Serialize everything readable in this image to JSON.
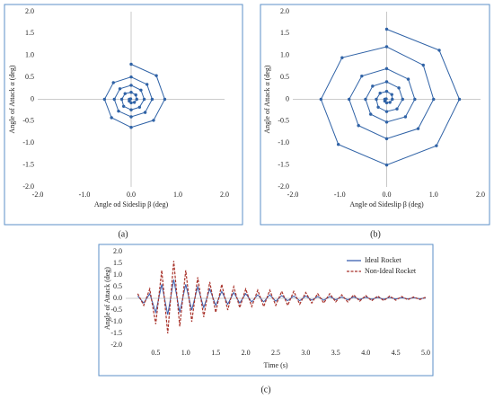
{
  "chart_data": [
    {
      "type": "line",
      "caption": "(a)",
      "x_label": "Angle od Sideslip β (deg)",
      "y_label": "Angle of Attack α (deg)",
      "xlim": [
        -2,
        2
      ],
      "ylim": [
        -2,
        2
      ],
      "xticks": [
        {
          "value": -2,
          "label": "-2.0"
        },
        {
          "value": -1,
          "label": "-1.0"
        },
        {
          "value": 0,
          "label": "0.0"
        },
        {
          "value": 1,
          "label": "1.0"
        },
        {
          "value": 2,
          "label": "2.0"
        }
      ],
      "yticks": [
        {
          "value": -2,
          "label": "-2.0"
        },
        {
          "value": -1.5,
          "label": "-1.5"
        },
        {
          "value": -1,
          "label": "-1.0"
        },
        {
          "value": -0.5,
          "label": "-0.5"
        },
        0,
        {
          "value": 0.5,
          "label": "0.5"
        },
        {
          "value": 1,
          "label": "1.0"
        },
        {
          "value": 1.5,
          "label": "1.5"
        },
        {
          "value": 2,
          "label": "2.0"
        }
      ],
      "x": [
        0,
        0.54,
        0.72,
        0.48,
        0,
        -0.42,
        -0.57,
        -0.38,
        0,
        0.34,
        0.45,
        0.3,
        0,
        -0.27,
        -0.36,
        -0.24,
        0,
        0.21,
        0.28,
        0.18,
        0,
        -0.16,
        -0.2,
        -0.13,
        0,
        0.1,
        0.12,
        0.07,
        0,
        -0.04,
        -0.04,
        -0.01
      ],
      "series": [
        {
          "color": "#2f62a6",
          "markers": true,
          "values": [
            0.8,
            0.54,
            0,
            -0.48,
            -0.64,
            -0.42,
            0,
            0.38,
            0.51,
            0.34,
            0,
            -0.3,
            -0.4,
            -0.27,
            0,
            0.24,
            0.32,
            0.21,
            0,
            -0.18,
            -0.24,
            -0.16,
            0,
            0.13,
            0.16,
            0.1,
            0,
            -0.07,
            -0.08,
            -0.04,
            0,
            0.01
          ]
        }
      ]
    },
    {
      "type": "line",
      "caption": "(b)",
      "x_label": "Angle od Sideslip β (deg)",
      "y_label": "Angle of Attack α (deg)",
      "xlim": [
        -2,
        2
      ],
      "ylim": [
        -2,
        2
      ],
      "xticks": [
        {
          "value": -2,
          "label": "-2.0"
        },
        {
          "value": -1,
          "label": "-1.0"
        },
        {
          "value": 0,
          "label": "0.0"
        },
        {
          "value": 1,
          "label": "1.0"
        },
        {
          "value": 2,
          "label": "2.0"
        }
      ],
      "yticks": [
        {
          "value": -2,
          "label": "-2.0"
        },
        {
          "value": -1.5,
          "label": "-1.5"
        },
        {
          "value": -1,
          "label": "-1.0"
        },
        {
          "value": -0.5,
          "label": "-0.5"
        },
        0,
        {
          "value": 0.5,
          "label": "0.5"
        },
        {
          "value": 1,
          "label": "1.0"
        },
        {
          "value": 1.5,
          "label": "1.5"
        },
        {
          "value": 2,
          "label": "2.0"
        }
      ],
      "x": [
        0,
        1.12,
        1.55,
        1.06,
        0,
        -1.03,
        -1.4,
        -0.95,
        0,
        0.78,
        1.0,
        0.67,
        0,
        -0.6,
        -0.8,
        -0.53,
        0,
        0.46,
        0.6,
        0.4,
        0,
        -0.34,
        -0.45,
        -0.3,
        0,
        0.26,
        0.34,
        0.22,
        0,
        -0.18,
        -0.22,
        -0.14,
        0,
        0.11,
        0.12,
        0.07,
        0,
        -0.04,
        -0.04,
        -0.01
      ],
      "series": [
        {
          "color": "#2f62a6",
          "markers": true,
          "values": [
            1.6,
            1.12,
            0,
            -1.06,
            -1.5,
            -1.03,
            0,
            0.95,
            1.2,
            0.78,
            0,
            -0.67,
            -0.9,
            -0.6,
            0,
            0.53,
            0.7,
            0.46,
            0,
            -0.4,
            -0.52,
            -0.34,
            0,
            0.3,
            0.4,
            0.26,
            0,
            -0.22,
            -0.28,
            -0.18,
            0,
            0.14,
            0.18,
            0.11,
            0,
            -0.07,
            -0.08,
            -0.04,
            0,
            0.01
          ]
        }
      ]
    },
    {
      "type": "line",
      "caption": "(c)",
      "x_label": "Time (s)",
      "y_label": "Angle of Attack (deg)",
      "xlim": [
        0,
        5
      ],
      "ylim": [
        -2,
        2
      ],
      "legend": "upper right",
      "xticks": [
        {
          "value": 0.5,
          "label": "0.5"
        },
        {
          "value": 1,
          "label": "1.0"
        },
        {
          "value": 1.5,
          "label": "1.5"
        },
        {
          "value": 2,
          "label": "2.0"
        },
        {
          "value": 2.5,
          "label": "2.5"
        },
        {
          "value": 3,
          "label": "3.0"
        },
        {
          "value": 3.5,
          "label": "3.5"
        },
        {
          "value": 4,
          "label": "4.0"
        },
        {
          "value": 4.5,
          "label": "4.5"
        },
        {
          "value": 5,
          "label": "5.0"
        }
      ],
      "yticks": [
        {
          "value": -2,
          "label": "-2.0"
        },
        {
          "value": -1.5,
          "label": "-1.5"
        },
        {
          "value": -1,
          "label": "-1.0"
        },
        {
          "value": -0.5,
          "label": "-0.5"
        },
        {
          "value": 0,
          "label": "0.0"
        },
        {
          "value": 0.5,
          "label": "0.5"
        },
        {
          "value": 1,
          "label": "1.0"
        },
        {
          "value": 1.5,
          "label": "1.5"
        },
        {
          "value": 2,
          "label": "2.0"
        }
      ],
      "x": [
        0.2,
        0.3,
        0.4,
        0.5,
        0.6,
        0.7,
        0.8,
        0.9,
        1.0,
        1.1,
        1.2,
        1.3,
        1.4,
        1.5,
        1.6,
        1.7,
        1.8,
        1.9,
        2.0,
        2.1,
        2.2,
        2.3,
        2.4,
        2.5,
        2.6,
        2.7,
        2.8,
        2.9,
        3.0,
        3.1,
        3.2,
        3.3,
        3.4,
        3.5,
        3.6,
        3.7,
        3.8,
        3.9,
        4.0,
        4.1,
        4.2,
        4.3,
        4.4,
        4.5,
        4.6,
        4.7,
        4.8,
        4.9,
        5.0
      ],
      "series": [
        {
          "name": "Ideal Rocket",
          "color": "#3a5fb0",
          "dashed": false,
          "values": [
            0.1,
            -0.2,
            0.2,
            -0.6,
            0.6,
            -0.7,
            0.8,
            -0.6,
            0.6,
            -0.5,
            0.5,
            -0.4,
            0.4,
            -0.3,
            0.3,
            -0.25,
            0.25,
            -0.2,
            0.2,
            -0.15,
            0.15,
            -0.15,
            0.15,
            -0.12,
            0.12,
            -0.1,
            0.1,
            -0.1,
            0.1,
            -0.08,
            0.08,
            -0.08,
            0.08,
            -0.06,
            0.06,
            -0.06,
            0.06,
            -0.05,
            0.05,
            -0.04,
            0.04,
            -0.04,
            0.04,
            -0.03,
            0.03,
            -0.03,
            0.03,
            -0.02,
            0.02
          ]
        },
        {
          "name": "Non-Ideal Rocket",
          "color": "#a8322a",
          "dashed": true,
          "values": [
            0.2,
            -0.3,
            0.4,
            -1.1,
            1.2,
            -1.5,
            1.6,
            -1.2,
            1.2,
            -1.0,
            0.9,
            -0.8,
            0.7,
            -0.6,
            0.6,
            -0.5,
            0.5,
            -0.4,
            0.4,
            -0.35,
            0.35,
            -0.35,
            0.35,
            -0.3,
            0.3,
            -0.3,
            0.3,
            -0.25,
            0.25,
            -0.2,
            0.2,
            -0.2,
            0.2,
            -0.15,
            0.15,
            -0.15,
            0.15,
            -0.12,
            0.12,
            -0.1,
            0.1,
            -0.1,
            0.1,
            -0.08,
            0.08,
            -0.06,
            0.06,
            -0.05,
            0.05
          ]
        }
      ]
    }
  ]
}
